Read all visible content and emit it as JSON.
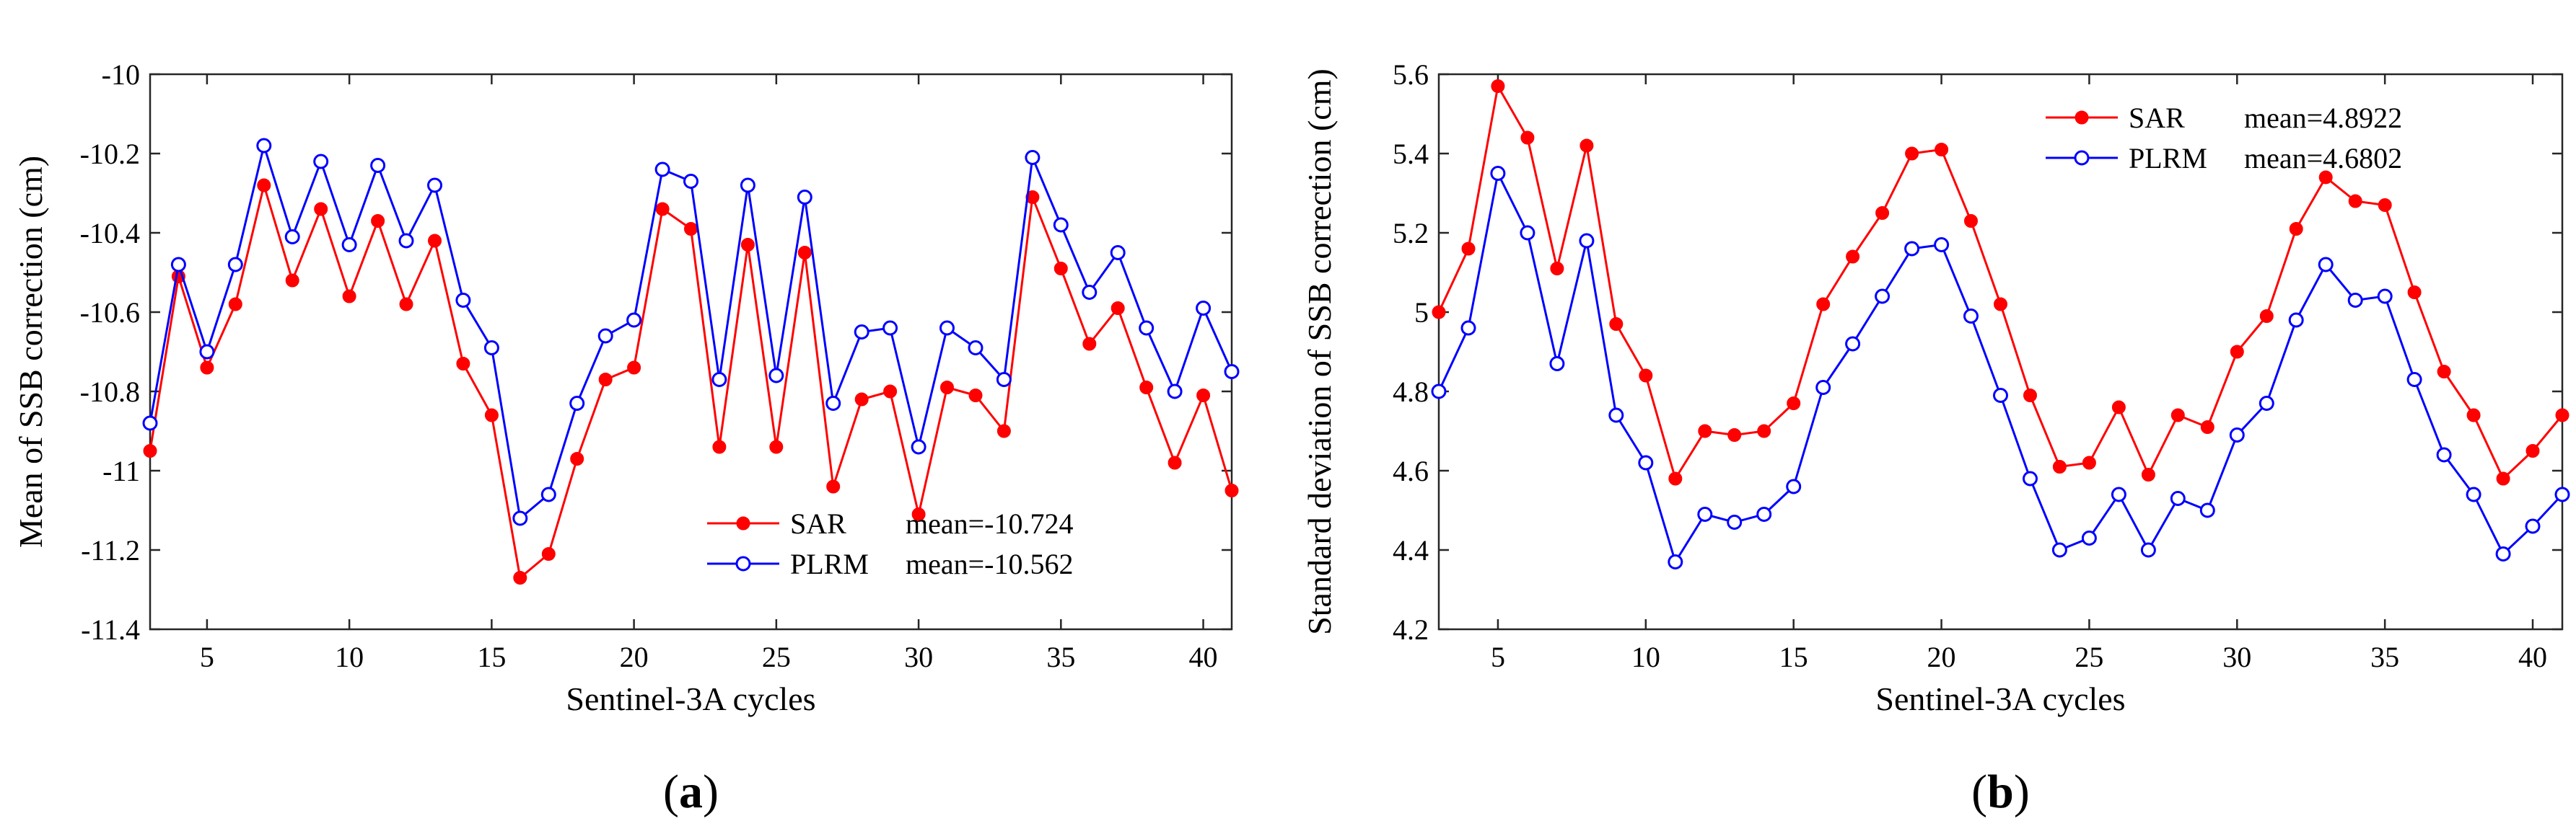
{
  "chart_data": [
    {
      "type": "line",
      "panel_label": "a",
      "xlabel": "Sentinel-3A cycles",
      "ylabel": "Mean of SSB correction (cm)",
      "xlim": [
        3,
        41
      ],
      "ylim": [
        -11.4,
        -10
      ],
      "xticks": [
        5,
        10,
        15,
        20,
        25,
        30,
        35,
        40
      ],
      "xtick_labels": [
        "5",
        "10",
        "15",
        "20",
        "25",
        "30",
        "35",
        "40"
      ],
      "yticks": [
        -11.4,
        -11.2,
        -11,
        -10.8,
        -10.6,
        -10.4,
        -10.2,
        -10
      ],
      "ytick_labels": [
        "-11.4",
        "-11.2",
        "-11",
        "-10.8",
        "-10.6",
        "-10.4",
        "-10.2",
        "-10"
      ],
      "legend_position": "bottom-right",
      "x": [
        3,
        4,
        5,
        6,
        7,
        8,
        9,
        10,
        11,
        12,
        13,
        14,
        15,
        16,
        17,
        18,
        19,
        20,
        21,
        22,
        23,
        24,
        25,
        26,
        27,
        28,
        29,
        30,
        31,
        32,
        33,
        34,
        35,
        36,
        37,
        38,
        39,
        40,
        41
      ],
      "series": [
        {
          "name": "SAR",
          "color": "#ff0000",
          "marker": "filled-circle",
          "stat": "mean=-10.724",
          "values": [
            -10.95,
            -10.51,
            -10.74,
            -10.58,
            -10.28,
            -10.52,
            -10.34,
            -10.56,
            -10.37,
            -10.58,
            -10.42,
            -10.73,
            -10.86,
            -11.27,
            -11.21,
            -10.97,
            -10.77,
            -10.74,
            -10.34,
            -10.39,
            -10.94,
            -10.43,
            -10.94,
            -10.45,
            -11.04,
            -10.82,
            -10.8,
            -11.11,
            -10.79,
            -10.81,
            -10.9,
            -10.31,
            -10.49,
            -10.68,
            -10.59,
            -10.79,
            -10.98,
            -10.81,
            -11.05
          ]
        },
        {
          "name": "PLRM",
          "color": "#0000ff",
          "marker": "open-circle",
          "stat": "mean=-10.562",
          "values": [
            -10.88,
            -10.48,
            -10.7,
            -10.48,
            -10.18,
            -10.41,
            -10.22,
            -10.43,
            -10.23,
            -10.42,
            -10.28,
            -10.57,
            -10.69,
            -11.12,
            -11.06,
            -10.83,
            -10.66,
            -10.62,
            -10.24,
            -10.27,
            -10.77,
            -10.28,
            -10.76,
            -10.31,
            -10.83,
            -10.65,
            -10.64,
            -10.94,
            -10.64,
            -10.69,
            -10.77,
            -10.21,
            -10.38,
            -10.55,
            -10.45,
            -10.64,
            -10.8,
            -10.59,
            -10.75
          ]
        }
      ]
    },
    {
      "type": "line",
      "panel_label": "b",
      "xlabel": "Sentinel-3A cycles",
      "ylabel": "Standard deviation of SSB correction (cm)",
      "xlim": [
        3,
        41
      ],
      "ylim": [
        4.2,
        5.6
      ],
      "xticks": [
        5,
        10,
        15,
        20,
        25,
        30,
        35,
        40
      ],
      "xtick_labels": [
        "5",
        "10",
        "15",
        "20",
        "25",
        "30",
        "35",
        "40"
      ],
      "yticks": [
        4.2,
        4.4,
        4.6,
        4.8,
        5,
        5.2,
        5.4,
        5.6
      ],
      "ytick_labels": [
        "4.2",
        "4.4",
        "4.6",
        "4.8",
        "5",
        "5.2",
        "5.4",
        "5.6"
      ],
      "legend_position": "top-center",
      "x": [
        3,
        4,
        5,
        6,
        7,
        8,
        9,
        10,
        11,
        12,
        13,
        14,
        15,
        16,
        17,
        18,
        19,
        20,
        21,
        22,
        23,
        24,
        25,
        26,
        27,
        28,
        29,
        30,
        31,
        32,
        33,
        34,
        35,
        36,
        37,
        38,
        39,
        40,
        41
      ],
      "series": [
        {
          "name": "SAR",
          "color": "#ff0000",
          "marker": "filled-circle",
          "stat": "mean=4.8922",
          "values": [
            5.0,
            5.16,
            5.57,
            5.44,
            5.11,
            5.42,
            4.97,
            4.84,
            4.58,
            4.7,
            4.69,
            4.7,
            4.77,
            5.02,
            5.14,
            5.25,
            5.4,
            5.41,
            5.23,
            5.02,
            4.79,
            4.61,
            4.62,
            4.76,
            4.59,
            4.74,
            4.71,
            4.9,
            4.99,
            5.21,
            5.34,
            5.28,
            5.27,
            5.05,
            4.85,
            4.74,
            4.58,
            4.65,
            4.74
          ]
        },
        {
          "name": "PLRM",
          "color": "#0000ff",
          "marker": "open-circle",
          "stat": "mean=4.6802",
          "values": [
            4.8,
            4.96,
            5.35,
            5.2,
            4.87,
            5.18,
            4.74,
            4.62,
            4.37,
            4.49,
            4.47,
            4.49,
            4.56,
            4.81,
            4.92,
            5.04,
            5.16,
            5.17,
            4.99,
            4.79,
            4.58,
            4.4,
            4.43,
            4.54,
            4.4,
            4.53,
            4.5,
            4.69,
            4.77,
            4.98,
            5.12,
            5.03,
            5.04,
            4.83,
            4.64,
            4.54,
            4.39,
            4.46,
            4.54
          ]
        }
      ]
    }
  ]
}
